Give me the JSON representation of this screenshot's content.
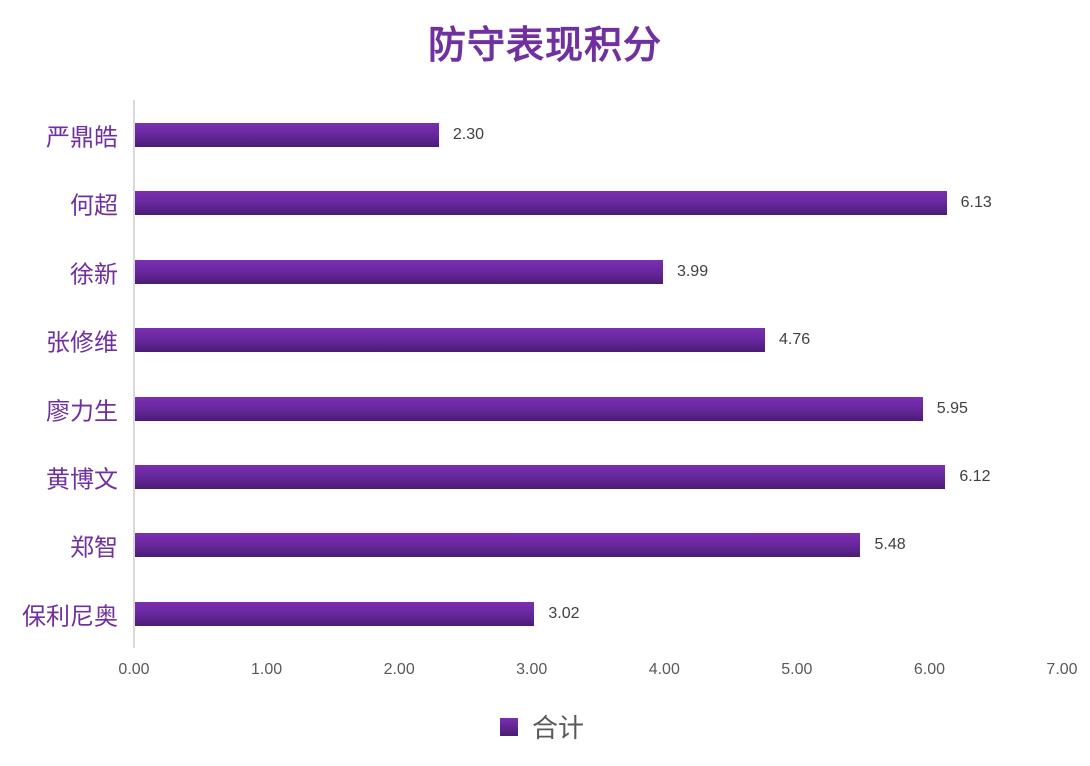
{
  "chart_data": {
    "type": "bar",
    "orientation": "horizontal",
    "title": "防守表现积分",
    "categories": [
      "严鼎皓",
      "何超",
      "徐新",
      "张修维",
      "廖力生",
      "黄博文",
      "郑智",
      "保利尼奥"
    ],
    "series": [
      {
        "name": "合计",
        "values": [
          2.3,
          6.13,
          3.99,
          4.76,
          5.95,
          6.12,
          5.48,
          3.02
        ],
        "color": "#7030a0"
      }
    ],
    "value_labels": [
      "2.30",
      "6.13",
      "3.99",
      "4.76",
      "5.95",
      "6.12",
      "5.48",
      "3.02"
    ],
    "xlabel": "",
    "ylabel": "",
    "xlim": [
      0,
      7
    ],
    "x_ticks": [
      "0.00",
      "1.00",
      "2.00",
      "3.00",
      "4.00",
      "5.00",
      "6.00",
      "7.00"
    ],
    "grid": false,
    "legend": {
      "position": "bottom",
      "entries": [
        "合计"
      ]
    }
  },
  "colors": {
    "title": "#7030a0",
    "bar": "#7030a0",
    "category_label": "#7030a0",
    "tick_label": "#595959",
    "value_label": "#404040"
  }
}
